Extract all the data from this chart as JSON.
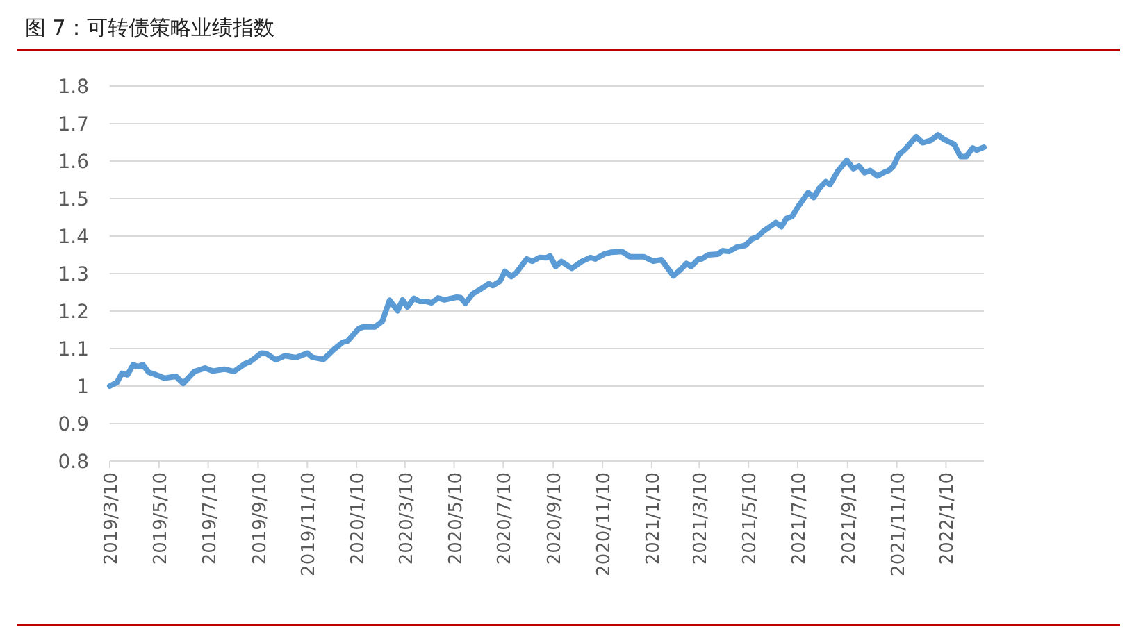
{
  "chart_data": {
    "type": "line",
    "title": "图 7：可转债策略业绩指数",
    "x": [
      "2019-03-10",
      "2019-03-19",
      "2019-03-25",
      "2019-04-01",
      "2019-04-08",
      "2019-04-14",
      "2019-04-20",
      "2019-04-27",
      "2019-05-05",
      "2019-05-17",
      "2019-05-31",
      "2019-06-09",
      "2019-06-23",
      "2019-07-06",
      "2019-07-16",
      "2019-07-30",
      "2019-08-11",
      "2019-08-25",
      "2019-08-31",
      "2019-09-14",
      "2019-09-20",
      "2019-10-02",
      "2019-10-13",
      "2019-10-27",
      "2019-11-10",
      "2019-11-16",
      "2019-11-30",
      "2019-12-12",
      "2019-12-24",
      "2019-12-30",
      "2020-01-13",
      "2020-01-19",
      "2020-02-02",
      "2020-02-11",
      "2020-02-20",
      "2020-03-01",
      "2020-03-07",
      "2020-03-13",
      "2020-03-21",
      "2020-03-28",
      "2020-04-05",
      "2020-04-12",
      "2020-04-20",
      "2020-04-28",
      "2020-05-13",
      "2020-05-18",
      "2020-05-24",
      "2020-06-02",
      "2020-06-10",
      "2020-06-22",
      "2020-06-27",
      "2020-07-06",
      "2020-07-12",
      "2020-07-20",
      "2020-07-26",
      "2020-08-08",
      "2020-08-15",
      "2020-08-24",
      "2020-09-01",
      "2020-09-06",
      "2020-09-13",
      "2020-09-20",
      "2020-10-03",
      "2020-10-15",
      "2020-10-26",
      "2020-11-01",
      "2020-11-12",
      "2020-11-21",
      "2020-12-04",
      "2020-12-14",
      "2020-12-31",
      "2021-01-12",
      "2021-01-22",
      "2021-02-06",
      "2021-02-15",
      "2021-02-22",
      "2021-02-28",
      "2021-03-09",
      "2021-03-13",
      "2021-03-21",
      "2021-04-02",
      "2021-04-08",
      "2021-04-11",
      "2021-04-16",
      "2021-04-25",
      "2021-05-06",
      "2021-05-15",
      "2021-05-21",
      "2021-05-29",
      "2021-06-13",
      "2021-06-20",
      "2021-06-26",
      "2021-07-03",
      "2021-07-11",
      "2021-07-23",
      "2021-07-30",
      "2021-08-06",
      "2021-08-14",
      "2021-08-19",
      "2021-08-29",
      "2021-09-09",
      "2021-09-17",
      "2021-09-24",
      "2021-10-01",
      "2021-10-08",
      "2021-10-17",
      "2021-10-26",
      "2021-10-31",
      "2021-11-06",
      "2021-11-12",
      "2021-11-20",
      "2021-12-04",
      "2021-12-12",
      "2021-12-22",
      "2021-12-31",
      "2022-01-08",
      "2022-01-20",
      "2022-01-28",
      "2022-02-04",
      "2022-02-12",
      "2022-02-17",
      "2022-02-26"
    ],
    "series": [
      {
        "color": "#5b9bd5",
        "values": [
          1.0,
          1.01,
          1.034,
          1.03,
          1.057,
          1.052,
          1.057,
          1.037,
          1.031,
          1.021,
          1.026,
          1.007,
          1.039,
          1.048,
          1.04,
          1.045,
          1.039,
          1.06,
          1.065,
          1.088,
          1.087,
          1.07,
          1.081,
          1.076,
          1.088,
          1.077,
          1.071,
          1.096,
          1.117,
          1.12,
          1.154,
          1.158,
          1.158,
          1.173,
          1.229,
          1.201,
          1.23,
          1.211,
          1.234,
          1.226,
          1.226,
          1.222,
          1.235,
          1.23,
          1.237,
          1.236,
          1.221,
          1.246,
          1.256,
          1.273,
          1.268,
          1.28,
          1.306,
          1.292,
          1.302,
          1.339,
          1.333,
          1.343,
          1.342,
          1.347,
          1.319,
          1.332,
          1.314,
          1.332,
          1.343,
          1.339,
          1.352,
          1.357,
          1.359,
          1.345,
          1.345,
          1.333,
          1.337,
          1.294,
          1.311,
          1.327,
          1.319,
          1.339,
          1.339,
          1.35,
          1.352,
          1.361,
          1.36,
          1.359,
          1.37,
          1.375,
          1.393,
          1.398,
          1.414,
          1.436,
          1.425,
          1.447,
          1.452,
          1.48,
          1.516,
          1.503,
          1.528,
          1.545,
          1.537,
          1.574,
          1.602,
          1.58,
          1.587,
          1.569,
          1.575,
          1.56,
          1.571,
          1.575,
          1.587,
          1.616,
          1.631,
          1.665,
          1.649,
          1.655,
          1.67,
          1.657,
          1.645,
          1.612,
          1.612,
          1.635,
          1.629,
          1.637
        ]
      }
    ],
    "xlim": [
      "2019-03-10",
      "2022-02-26"
    ],
    "xticks": [
      {
        "value": "2019-03-10",
        "label": "2019/3/10"
      },
      {
        "value": "2019-05-10",
        "label": "2019/5/10"
      },
      {
        "value": "2019-07-10",
        "label": "2019/7/10"
      },
      {
        "value": "2019-09-10",
        "label": "2019/9/10"
      },
      {
        "value": "2019-11-10",
        "label": "2019/11/10"
      },
      {
        "value": "2020-01-10",
        "label": "2020/1/10"
      },
      {
        "value": "2020-03-10",
        "label": "2020/3/10"
      },
      {
        "value": "2020-05-10",
        "label": "2020/5/10"
      },
      {
        "value": "2020-07-10",
        "label": "2020/7/10"
      },
      {
        "value": "2020-09-10",
        "label": "2020/9/10"
      },
      {
        "value": "2020-11-10",
        "label": "2020/11/10"
      },
      {
        "value": "2021-01-10",
        "label": "2021/1/10"
      },
      {
        "value": "2021-03-10",
        "label": "2021/3/10"
      },
      {
        "value": "2021-05-10",
        "label": "2021/5/10"
      },
      {
        "value": "2021-07-10",
        "label": "2021/7/10"
      },
      {
        "value": "2021-09-10",
        "label": "2021/9/10"
      },
      {
        "value": "2021-11-10",
        "label": "2021/11/10"
      },
      {
        "value": "2022-01-10",
        "label": "2022/1/10"
      }
    ],
    "ylim": [
      0.8,
      1.8
    ],
    "yticks": [
      {
        "value": 0.8,
        "label": "0.8"
      },
      {
        "value": 0.9,
        "label": "0.9"
      },
      1,
      {
        "value": 1.1,
        "label": "1.1"
      },
      {
        "value": 1.2,
        "label": "1.2"
      },
      {
        "value": 1.3,
        "label": "1.3"
      },
      {
        "value": 1.4,
        "label": "1.4"
      },
      {
        "value": 1.5,
        "label": "1.5"
      },
      {
        "value": 1.6,
        "label": "1.6"
      },
      {
        "value": 1.7,
        "label": "1.7"
      },
      {
        "value": 1.8,
        "label": "1.8"
      }
    ],
    "grid": "y",
    "line_style": "solid"
  }
}
